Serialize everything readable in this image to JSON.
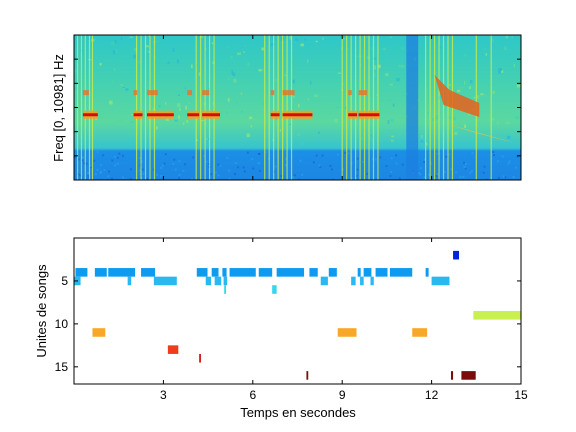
{
  "chart_data": [
    {
      "type": "heatmap",
      "title": "",
      "xlabel": "",
      "ylabel": "Freq [0, 10981] Hz",
      "xlim": [
        0,
        15
      ],
      "ylim": [
        0,
        10981
      ],
      "xticks": [
        3,
        6,
        9,
        12,
        15
      ],
      "tick_labels_shown": false,
      "colormap": "jet",
      "notes_visible": "spectrogram of bird song; vertical broadband clicks and red harmonic song units"
    },
    {
      "type": "scatter",
      "title": "",
      "xlabel": "Temps en secondes",
      "ylabel": "Unites de songs",
      "xlim": [
        0,
        15
      ],
      "ylim": [
        17,
        0
      ],
      "yreversed": true,
      "xticks": [
        3,
        6,
        9,
        12,
        15
      ],
      "xtick_labels": [
        "3",
        "6",
        "9",
        "12",
        "15"
      ],
      "yticks": [
        5,
        10,
        15
      ],
      "ytick_labels": [
        "5",
        "10",
        "15"
      ],
      "unit_colors": {
        "2": "#0022dd",
        "4": "#0d9bf0",
        "5": "#29b9f0",
        "6": "#33d8ea",
        "9": "#c8f050",
        "11": "#f7a829",
        "13": "#ef3d1c",
        "14": "#d81010",
        "16": "#7a0c0c"
      },
      "segments": [
        {
          "unit": 2,
          "start": 12.72,
          "end": 12.92
        },
        {
          "unit": 4,
          "start": 0.05,
          "end": 0.45
        },
        {
          "unit": 4,
          "start": 0.7,
          "end": 1.1
        },
        {
          "unit": 4,
          "start": 1.15,
          "end": 2.05
        },
        {
          "unit": 4,
          "start": 2.25,
          "end": 2.72
        },
        {
          "unit": 4,
          "start": 4.12,
          "end": 4.48
        },
        {
          "unit": 4,
          "start": 4.62,
          "end": 4.85
        },
        {
          "unit": 4,
          "start": 4.98,
          "end": 5.12
        },
        {
          "unit": 4,
          "start": 5.22,
          "end": 6.1
        },
        {
          "unit": 4,
          "start": 6.2,
          "end": 6.65
        },
        {
          "unit": 4,
          "start": 6.8,
          "end": 7.72
        },
        {
          "unit": 4,
          "start": 7.9,
          "end": 8.18
        },
        {
          "unit": 4,
          "start": 8.55,
          "end": 8.82
        },
        {
          "unit": 4,
          "start": 9.52,
          "end": 9.62
        },
        {
          "unit": 4,
          "start": 9.72,
          "end": 9.98
        },
        {
          "unit": 4,
          "start": 10.12,
          "end": 10.52
        },
        {
          "unit": 4,
          "start": 10.6,
          "end": 11.35
        },
        {
          "unit": 4,
          "start": 11.8,
          "end": 11.9
        },
        {
          "unit": 5,
          "start": 0.0,
          "end": 0.22
        },
        {
          "unit": 5,
          "start": 1.8,
          "end": 1.92
        },
        {
          "unit": 5,
          "start": 2.68,
          "end": 3.45
        },
        {
          "unit": 5,
          "start": 4.42,
          "end": 4.6
        },
        {
          "unit": 5,
          "start": 4.72,
          "end": 4.94
        },
        {
          "unit": 5,
          "start": 5.02,
          "end": 5.14
        },
        {
          "unit": 5,
          "start": 8.28,
          "end": 8.52
        },
        {
          "unit": 5,
          "start": 9.3,
          "end": 9.45
        },
        {
          "unit": 5,
          "start": 9.6,
          "end": 9.72
        },
        {
          "unit": 5,
          "start": 9.95,
          "end": 10.06
        },
        {
          "unit": 5,
          "start": 12.0,
          "end": 12.6
        },
        {
          "unit": 6,
          "start": 5.04,
          "end": 5.1
        },
        {
          "unit": 6,
          "start": 6.65,
          "end": 6.8
        },
        {
          "unit": 9,
          "start": 13.4,
          "end": 15.0
        },
        {
          "unit": 11,
          "start": 0.62,
          "end": 1.05
        },
        {
          "unit": 11,
          "start": 8.85,
          "end": 9.48
        },
        {
          "unit": 11,
          "start": 11.35,
          "end": 11.85
        },
        {
          "unit": 13,
          "start": 3.15,
          "end": 3.5
        },
        {
          "unit": 14,
          "start": 4.2,
          "end": 4.26
        },
        {
          "unit": 16,
          "start": 7.8,
          "end": 7.86
        },
        {
          "unit": 16,
          "start": 12.65,
          "end": 12.72
        },
        {
          "unit": 16,
          "start": 13.0,
          "end": 13.48
        }
      ]
    }
  ]
}
